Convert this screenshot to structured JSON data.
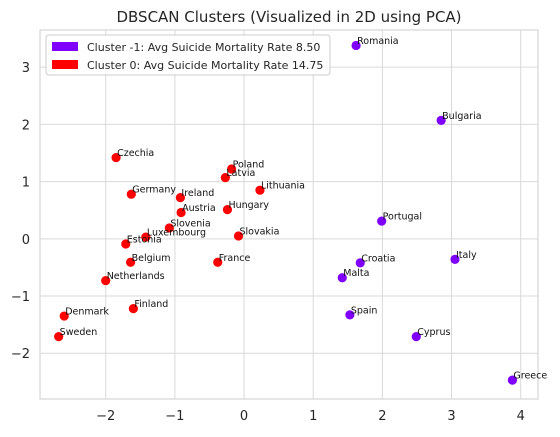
{
  "chart_data": {
    "type": "scatter",
    "title": "DBSCAN Clusters (Visualized in 2D using PCA)",
    "xlabel": "",
    "ylabel": "",
    "xlim": [
      -2.95,
      4.25
    ],
    "ylim": [
      -2.8,
      3.65
    ],
    "xticks": [
      -2,
      -1,
      0,
      1,
      2,
      3,
      4
    ],
    "yticks": [
      -2,
      -1,
      0,
      1,
      2,
      3
    ],
    "xtick_labels": [
      "−2",
      "−1",
      "0",
      "1",
      "2",
      "3",
      "4"
    ],
    "ytick_labels": [
      "−2",
      "−1",
      "0",
      "1",
      "2",
      "3"
    ],
    "grid": true,
    "legend_position": "top-left",
    "series": [
      {
        "name": "Cluster -1: Avg Suicide Mortality Rate 8.50",
        "color": "#7f00ff",
        "points": [
          {
            "label": "Romania",
            "x": 1.62,
            "y": 3.38
          },
          {
            "label": "Bulgaria",
            "x": 2.85,
            "y": 2.07
          },
          {
            "label": "Portugal",
            "x": 1.99,
            "y": 0.31
          },
          {
            "label": "Italy",
            "x": 3.05,
            "y": -0.36
          },
          {
            "label": "Croatia",
            "x": 1.68,
            "y": -0.42
          },
          {
            "label": "Malta",
            "x": 1.42,
            "y": -0.68
          },
          {
            "label": "Spain",
            "x": 1.53,
            "y": -1.33
          },
          {
            "label": "Cyprus",
            "x": 2.49,
            "y": -1.71
          },
          {
            "label": "Greece",
            "x": 3.88,
            "y": -2.47
          }
        ]
      },
      {
        "name": "Cluster 0: Avg Suicide Mortality Rate 14.75",
        "color": "#ff0000",
        "points": [
          {
            "label": "Czechia",
            "x": -1.85,
            "y": 1.42
          },
          {
            "label": "Poland",
            "x": -0.18,
            "y": 1.22
          },
          {
            "label": "Latvia",
            "x": -0.27,
            "y": 1.07
          },
          {
            "label": "Lithuania",
            "x": 0.23,
            "y": 0.85
          },
          {
            "label": "Germany",
            "x": -1.63,
            "y": 0.78
          },
          {
            "label": "Ireland",
            "x": -0.92,
            "y": 0.72
          },
          {
            "label": "Austria",
            "x": -0.91,
            "y": 0.46
          },
          {
            "label": "Hungary",
            "x": -0.24,
            "y": 0.51
          },
          {
            "label": "Slovenia",
            "x": -1.08,
            "y": 0.19
          },
          {
            "label": "Luxembourg",
            "x": -1.42,
            "y": 0.03
          },
          {
            "label": "Slovakia",
            "x": -0.08,
            "y": 0.05
          },
          {
            "label": "Estonia",
            "x": -1.71,
            "y": -0.09
          },
          {
            "label": "Belgium",
            "x": -1.64,
            "y": -0.41
          },
          {
            "label": "France",
            "x": -0.38,
            "y": -0.41
          },
          {
            "label": "Netherlands",
            "x": -2.0,
            "y": -0.73
          },
          {
            "label": "Finland",
            "x": -1.6,
            "y": -1.22
          },
          {
            "label": "Denmark",
            "x": -2.6,
            "y": -1.35
          },
          {
            "label": "Sweden",
            "x": -2.68,
            "y": -1.71
          }
        ]
      }
    ]
  }
}
